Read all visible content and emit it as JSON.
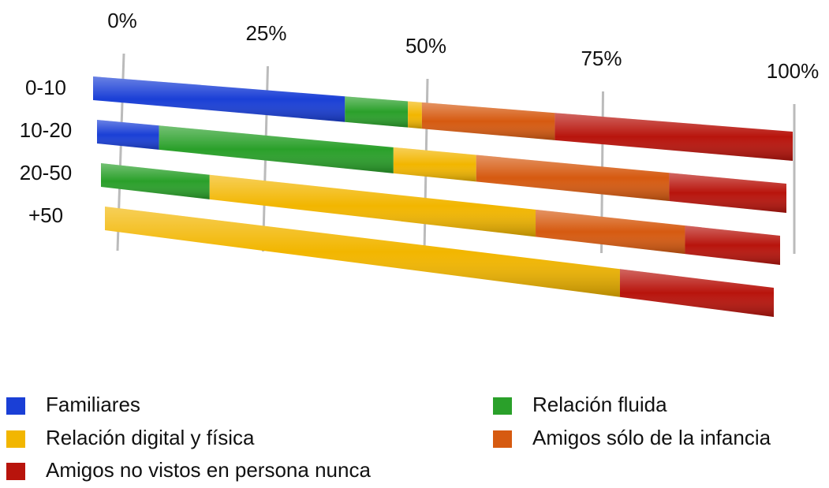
{
  "chart_data": {
    "type": "bar",
    "orientation": "horizontal",
    "stacked": true,
    "categories": [
      "0-10",
      "10-20",
      "20-50",
      "+50"
    ],
    "series": [
      {
        "name": "Familiares",
        "color": "#1a3fd6",
        "values": [
          36,
          9,
          0,
          0
        ]
      },
      {
        "name": "Relación fluida",
        "color": "#2aa02a",
        "values": [
          9,
          34,
          16,
          0
        ]
      },
      {
        "name": "Relación digital y física",
        "color": "#f2b600",
        "values": [
          2,
          12,
          48,
          77
        ]
      },
      {
        "name": "Amigos sólo de la infancia",
        "color": "#d65a10",
        "values": [
          19,
          28,
          22,
          0
        ]
      },
      {
        "name": "Amigos no vistos en persona nunca",
        "color": "#b8140c",
        "values": [
          34,
          17,
          14,
          23
        ]
      }
    ],
    "xlim": [
      0,
      100
    ],
    "xticks": [
      {
        "value": 0,
        "label": "0%"
      },
      {
        "value": 25,
        "label": "25%"
      },
      {
        "value": 50,
        "label": "50%"
      },
      {
        "value": 75,
        "label": "75%"
      },
      {
        "value": 100,
        "label": "100%"
      }
    ],
    "grid": true,
    "legend": "bottom"
  }
}
